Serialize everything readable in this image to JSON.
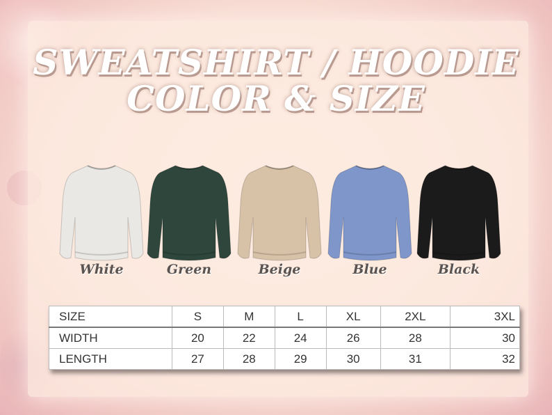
{
  "title": {
    "line1": "SWEATSHIRT / HOODIE",
    "line2": "COLOR & SIZE"
  },
  "colors": [
    {
      "name": "White",
      "hex": "#e9e8e4"
    },
    {
      "name": "Green",
      "hex": "#2e463c"
    },
    {
      "name": "Beige",
      "hex": "#d8c2a7"
    },
    {
      "name": "Blue",
      "hex": "#7e96c9"
    },
    {
      "name": "Black",
      "hex": "#1b1b1b"
    }
  ],
  "size_table": {
    "header": [
      "SIZE",
      "S",
      "M",
      "L",
      "XL",
      "2XL",
      "3XL"
    ],
    "rows": [
      [
        "WIDTH",
        "20",
        "22",
        "24",
        "26",
        "28",
        "30"
      ],
      [
        "LENGTH",
        "27",
        "28",
        "29",
        "30",
        "31",
        "32"
      ]
    ]
  }
}
